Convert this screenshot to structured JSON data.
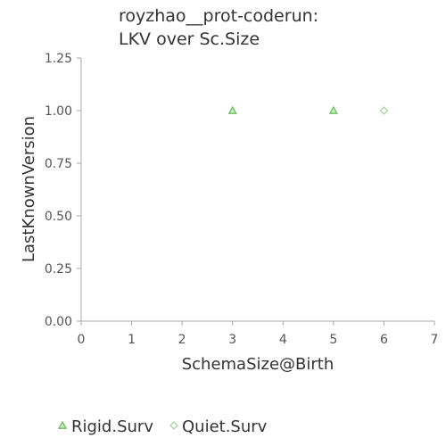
{
  "chart_data": {
    "type": "scatter",
    "title_lines": [
      "royzhao__prot-coderun:",
      "LKV over Sc.Size"
    ],
    "xlabel": "SchemaSize@Birth",
    "ylabel": "LastKnownVersion",
    "xlim": [
      0,
      7
    ],
    "ylim": [
      0,
      1.25
    ],
    "x_ticks": [
      0,
      1,
      2,
      3,
      4,
      5,
      6,
      7
    ],
    "x_tick_labels": [
      "0",
      "1",
      "2",
      "3",
      "4",
      "5",
      "6",
      "7"
    ],
    "y_ticks": [
      0,
      0.25,
      0.5,
      0.75,
      1.0,
      1.25
    ],
    "y_tick_labels": [
      "0.00",
      "0.25",
      "0.50",
      "0.75",
      "1.00",
      "1.25"
    ],
    "grid": false,
    "legend_position": "bottom",
    "series": [
      {
        "name": "Rigid.Surv",
        "marker": "triangle",
        "color": "#6dbf60",
        "points": [
          {
            "x": 3,
            "y": 1.0
          },
          {
            "x": 5,
            "y": 1.0
          }
        ]
      },
      {
        "name": "Quiet.Surv",
        "marker": "diamond",
        "color": "#a6d99a",
        "points": [
          {
            "x": 6,
            "y": 1.0
          }
        ]
      }
    ]
  }
}
